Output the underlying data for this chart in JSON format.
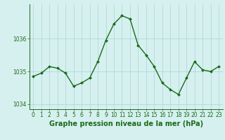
{
  "x": [
    0,
    1,
    2,
    3,
    4,
    5,
    6,
    7,
    8,
    9,
    10,
    11,
    12,
    13,
    14,
    15,
    16,
    17,
    18,
    19,
    20,
    21,
    22,
    23
  ],
  "y": [
    1034.85,
    1034.95,
    1035.15,
    1035.1,
    1034.95,
    1034.55,
    1034.65,
    1034.8,
    1035.3,
    1035.95,
    1036.45,
    1036.7,
    1036.6,
    1035.8,
    1035.5,
    1035.15,
    1034.65,
    1034.45,
    1034.3,
    1034.8,
    1035.3,
    1035.05,
    1035.0,
    1035.15
  ],
  "line_color": "#1a6b1a",
  "marker": "D",
  "markersize": 2.0,
  "linewidth": 1.0,
  "bg_color": "#d6f0f0",
  "grid_color": "#aad4d4",
  "xlabel": "Graphe pression niveau de la mer (hPa)",
  "xlabel_fontsize": 7.0,
  "xlabel_color": "#1a6b1a",
  "tick_color": "#1a6b1a",
  "tick_fontsize": 5.5,
  "ylim": [
    1033.85,
    1037.05
  ],
  "yticks": [
    1034,
    1035,
    1036
  ],
  "xlim": [
    -0.5,
    23.5
  ],
  "xticks": [
    0,
    1,
    2,
    3,
    4,
    5,
    6,
    7,
    8,
    9,
    10,
    11,
    12,
    13,
    14,
    15,
    16,
    17,
    18,
    19,
    20,
    21,
    22,
    23
  ],
  "spine_color": "#1a6b1a"
}
